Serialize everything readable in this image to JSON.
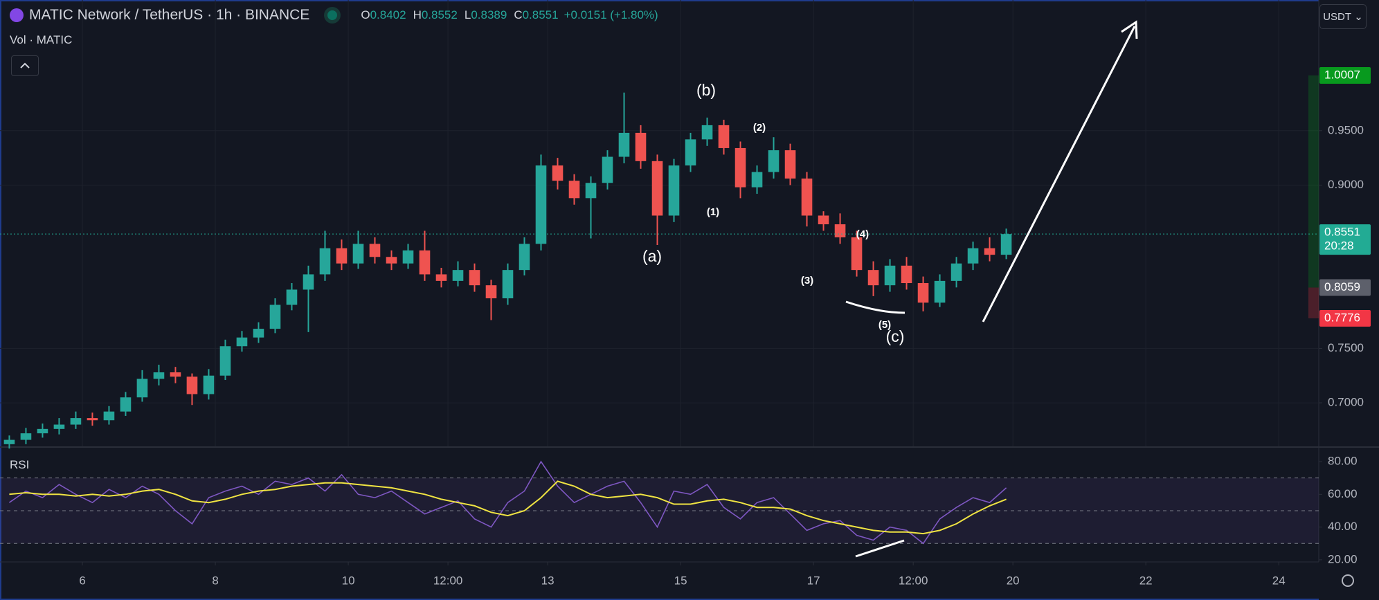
{
  "header": {
    "symbol": "MATIC Network / TetherUS · 1h · BINANCE",
    "ohlc": [
      {
        "label": "O",
        "value": "0.8402"
      },
      {
        "label": "H",
        "value": "0.8552"
      },
      {
        "label": "L",
        "value": "0.8389"
      },
      {
        "label": "C",
        "value": "0.8551"
      }
    ],
    "change": "+0.0151 (+1.80%)",
    "volume_label": "Vol · MATIC",
    "currency": "USDT"
  },
  "chart_data": [
    {
      "type": "candlestick",
      "x": [
        4.9,
        5.15,
        5.4,
        5.65,
        5.9,
        6.15,
        6.4,
        6.65,
        6.9,
        7.15,
        7.4,
        7.65,
        7.9,
        8.15,
        8.4,
        8.65,
        8.9,
        9.15,
        9.4,
        9.65,
        9.9,
        10.15,
        10.4,
        10.65,
        10.9,
        11.15,
        11.4,
        11.65,
        11.9,
        12.15,
        12.4,
        12.65,
        12.9,
        13.15,
        13.4,
        13.65,
        13.9,
        14.15,
        14.4,
        14.65,
        14.9,
        15.15,
        15.4,
        15.65,
        15.9,
        16.15,
        16.4,
        16.65,
        16.9,
        17.15,
        17.4,
        17.65,
        17.9,
        18.15,
        18.4,
        18.65,
        18.9,
        19.15,
        19.4,
        19.65,
        19.9
      ],
      "open": [
        0.662,
        0.666,
        0.672,
        0.676,
        0.68,
        0.686,
        0.684,
        0.692,
        0.705,
        0.722,
        0.728,
        0.724,
        0.708,
        0.725,
        0.752,
        0.76,
        0.768,
        0.79,
        0.804,
        0.818,
        0.842,
        0.828,
        0.846,
        0.834,
        0.828,
        0.84,
        0.818,
        0.812,
        0.822,
        0.808,
        0.796,
        0.822,
        0.846,
        0.918,
        0.904,
        0.888,
        0.902,
        0.926,
        0.948,
        0.922,
        0.872,
        0.918,
        0.942,
        0.955,
        0.934,
        0.898,
        0.912,
        0.932,
        0.906,
        0.872,
        0.864,
        0.852,
        0.822,
        0.808,
        0.826,
        0.81,
        0.792,
        0.812,
        0.828,
        0.842,
        0.836
      ],
      "high": [
        0.67,
        0.677,
        0.681,
        0.686,
        0.692,
        0.691,
        0.697,
        0.71,
        0.73,
        0.735,
        0.733,
        0.727,
        0.731,
        0.758,
        0.766,
        0.774,
        0.796,
        0.81,
        0.826,
        0.858,
        0.85,
        0.858,
        0.852,
        0.84,
        0.846,
        0.858,
        0.824,
        0.83,
        0.828,
        0.813,
        0.828,
        0.852,
        0.928,
        0.925,
        0.91,
        0.908,
        0.932,
        0.985,
        0.955,
        0.928,
        0.924,
        0.948,
        0.962,
        0.96,
        0.94,
        0.918,
        0.944,
        0.938,
        0.912,
        0.876,
        0.874,
        0.858,
        0.83,
        0.832,
        0.834,
        0.816,
        0.818,
        0.834,
        0.848,
        0.852,
        0.86
      ],
      "low": [
        0.658,
        0.662,
        0.668,
        0.671,
        0.676,
        0.679,
        0.68,
        0.688,
        0.701,
        0.716,
        0.718,
        0.698,
        0.703,
        0.721,
        0.747,
        0.755,
        0.764,
        0.785,
        0.765,
        0.812,
        0.822,
        0.823,
        0.828,
        0.822,
        0.823,
        0.812,
        0.806,
        0.807,
        0.802,
        0.776,
        0.79,
        0.817,
        0.84,
        0.896,
        0.882,
        0.851,
        0.896,
        0.92,
        0.915,
        0.845,
        0.866,
        0.912,
        0.936,
        0.928,
        0.888,
        0.892,
        0.906,
        0.9,
        0.862,
        0.858,
        0.846,
        0.816,
        0.798,
        0.802,
        0.804,
        0.784,
        0.788,
        0.806,
        0.822,
        0.83,
        0.832
      ],
      "close": [
        0.666,
        0.672,
        0.676,
        0.68,
        0.686,
        0.684,
        0.692,
        0.705,
        0.722,
        0.728,
        0.724,
        0.708,
        0.725,
        0.752,
        0.76,
        0.768,
        0.79,
        0.804,
        0.818,
        0.842,
        0.828,
        0.846,
        0.834,
        0.828,
        0.84,
        0.818,
        0.812,
        0.822,
        0.808,
        0.796,
        0.822,
        0.846,
        0.918,
        0.904,
        0.888,
        0.902,
        0.926,
        0.948,
        0.922,
        0.872,
        0.918,
        0.942,
        0.955,
        0.934,
        0.898,
        0.912,
        0.932,
        0.906,
        0.872,
        0.864,
        0.852,
        0.822,
        0.808,
        0.826,
        0.81,
        0.792,
        0.812,
        0.828,
        0.842,
        0.836,
        0.855
      ],
      "up_color": "#26a69a",
      "down_color": "#ef5350",
      "xlim": [
        4.76,
        24.55
      ],
      "ylim": [
        0.66,
        1.07
      ],
      "yticks": [
        {
          "value": 0.95,
          "label": "0.9500"
        },
        {
          "value": 0.9,
          "label": "0.9000"
        },
        {
          "value": 0.75,
          "label": "0.7500"
        },
        {
          "value": 0.7,
          "label": "0.7000"
        }
      ],
      "grid": true,
      "price_tags": [
        {
          "value": 1.0007,
          "label": "1.0007",
          "color": "#089a1e"
        },
        {
          "value": 0.8551,
          "label": "0.8551",
          "sublabel": "20:28",
          "color": "#22ab94"
        },
        {
          "value": 0.8059,
          "label": "0.8059",
          "color": "#5d606b"
        },
        {
          "value": 0.7776,
          "label": "0.7776",
          "color": "#f23645"
        }
      ],
      "annotations": [
        "(b)",
        "(a)",
        "(1)",
        "(2)",
        "(3)",
        "(4)",
        "(5)",
        "(c)"
      ]
    },
    {
      "type": "line",
      "title": "RSI",
      "x": [
        4.9,
        5.15,
        5.4,
        5.65,
        5.9,
        6.15,
        6.4,
        6.65,
        6.9,
        7.15,
        7.4,
        7.65,
        7.9,
        8.15,
        8.4,
        8.65,
        8.9,
        9.15,
        9.4,
        9.65,
        9.9,
        10.15,
        10.4,
        10.65,
        10.9,
        11.15,
        11.4,
        11.65,
        11.9,
        12.15,
        12.4,
        12.65,
        12.9,
        13.15,
        13.4,
        13.65,
        13.9,
        14.15,
        14.4,
        14.65,
        14.9,
        15.15,
        15.4,
        15.65,
        15.9,
        16.15,
        16.4,
        16.65,
        16.9,
        17.15,
        17.4,
        17.65,
        17.9,
        18.15,
        18.4,
        18.65,
        18.9,
        19.15,
        19.4,
        19.65,
        19.9
      ],
      "series": [
        {
          "color": "#7e57c2",
          "values": [
            55,
            62,
            58,
            66,
            60,
            55,
            63,
            58,
            65,
            60,
            50,
            42,
            58,
            62,
            65,
            60,
            68,
            66,
            70,
            62,
            72,
            60,
            58,
            62,
            55,
            48,
            52,
            56,
            45,
            40,
            55,
            62,
            80,
            65,
            55,
            60,
            65,
            68,
            55,
            40,
            62,
            60,
            66,
            52,
            45,
            55,
            58,
            48,
            38,
            42,
            44,
            35,
            32,
            40,
            38,
            30,
            45,
            52,
            58,
            55,
            64
          ]
        },
        {
          "color": "#f0e442",
          "values": [
            60,
            61,
            60,
            60,
            59,
            60,
            59,
            60,
            62,
            63,
            60,
            56,
            55,
            57,
            60,
            62,
            63,
            65,
            66,
            67,
            67,
            66,
            65,
            64,
            62,
            60,
            57,
            55,
            53,
            49,
            47,
            50,
            58,
            68,
            65,
            60,
            58,
            59,
            60,
            58,
            54,
            54,
            56,
            57,
            55,
            52,
            52,
            51,
            47,
            44,
            42,
            40,
            38,
            37,
            37,
            36,
            38,
            42,
            48,
            53,
            57
          ]
        }
      ],
      "xlim": [
        4.76,
        24.55
      ],
      "ylim": [
        18.7,
        87.2
      ],
      "yticks": [
        {
          "value": 80,
          "label": "80.00"
        },
        {
          "value": 60,
          "label": "60.00"
        },
        {
          "value": 40,
          "label": "40.00"
        },
        {
          "value": 20,
          "label": "20.00"
        }
      ],
      "bands": [
        30,
        50,
        70
      ],
      "xticks": [
        6,
        8,
        10,
        {
          "value": 11.5,
          "label": "12:00"
        },
        13,
        15,
        17,
        {
          "value": 18.5,
          "label": "12:00"
        },
        20,
        22,
        24
      ]
    }
  ]
}
